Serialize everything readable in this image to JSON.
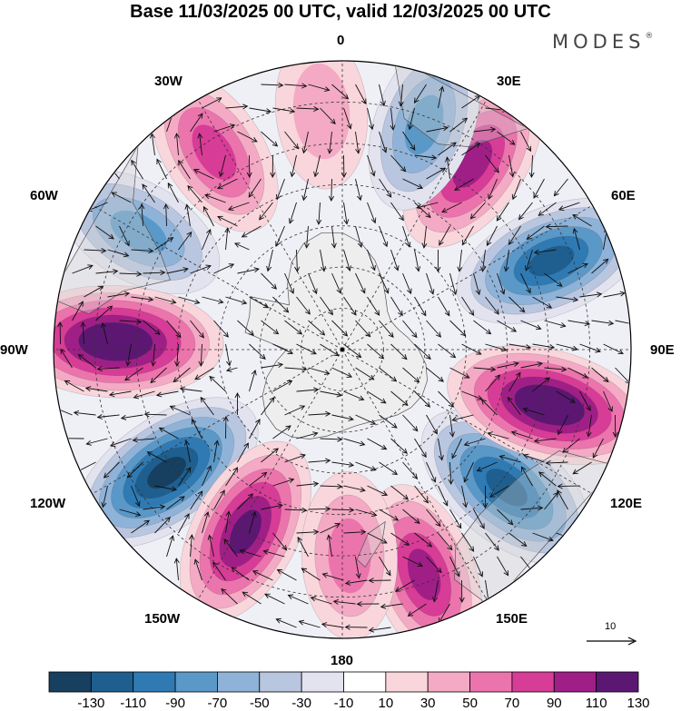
{
  "title": "Base 11/03/2025 00 UTC, valid 12/03/2025 00 UTC",
  "brand": {
    "name": "MODES",
    "mark": "®"
  },
  "longitude_labels": [
    "0",
    "30E",
    "60E",
    "90E",
    "120E",
    "150E",
    "180",
    "150W",
    "120W",
    "90W",
    "60W",
    "30W"
  ],
  "reference_vector": {
    "label": "10"
  },
  "colorbar": {
    "ticks": [
      "-130",
      "-110",
      "-90",
      "-70",
      "-50",
      "-30",
      "-10",
      "10",
      "30",
      "50",
      "70",
      "90",
      "110",
      "130"
    ],
    "colors": [
      "#173f5f",
      "#1e5f8f",
      "#2f7ab3",
      "#5a98c8",
      "#8fb3d8",
      "#b9c6e0",
      "#e3e3f0",
      "#ffffff",
      "#f9d6dc",
      "#f4aac4",
      "#ec74ad",
      "#d73c97",
      "#a01f86",
      "#5c1773"
    ]
  },
  "map": {
    "projection": "south polar stereographic",
    "field_color_scale": [
      -150,
      -130,
      -110,
      -90,
      -70,
      -50,
      -30,
      -10,
      10,
      30,
      50,
      70,
      90,
      110,
      130,
      150
    ],
    "anomaly_centers": [
      {
        "lon": 160,
        "lat_from_pole": 58,
        "value": 95
      },
      {
        "lon": 130,
        "lat_from_pole": 52,
        "value": -120
      },
      {
        "lon": 105,
        "lat_from_pole": 52,
        "value": 130
      },
      {
        "lon": 67,
        "lat_from_pole": 55,
        "value": -115
      },
      {
        "lon": 35,
        "lat_from_pole": 55,
        "value": 100
      },
      {
        "lon": 20,
        "lat_from_pole": 58,
        "value": -80
      },
      {
        "lon": -5,
        "lat_from_pole": 58,
        "value": 45
      },
      {
        "lon": -33,
        "lat_from_pole": 57,
        "value": 80
      },
      {
        "lon": -60,
        "lat_from_pole": 57,
        "value": -80
      },
      {
        "lon": -88,
        "lat_from_pole": 55,
        "value": 140
      },
      {
        "lon": -125,
        "lat_from_pole": 52,
        "value": -130
      },
      {
        "lon": -152,
        "lat_from_pole": 50,
        "value": 110
      },
      {
        "lon": 178,
        "lat_from_pole": 50,
        "value": 65
      }
    ]
  }
}
